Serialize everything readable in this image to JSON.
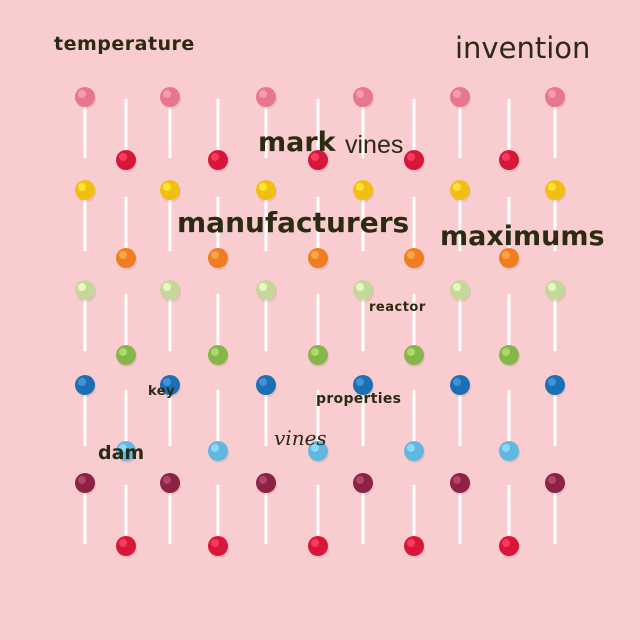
{
  "scene": {
    "background_color": "#f9cccf",
    "stick_color": "#ffffff",
    "candy_colors": {
      "pink": "#e8768f",
      "red": "#d8163a",
      "yellow": "#f3be14",
      "orange": "#ef7e22",
      "pale-green": "#c6d79a",
      "green": "#86b54a",
      "blue": "#1a70b2",
      "light-blue": "#62b7e1",
      "maroon": "#8e2244"
    }
  },
  "words": {
    "temperature": "temperature",
    "invention": "invention",
    "mark": "mark",
    "vines_1": "vines",
    "manufacturers": "manufacturers",
    "maximums": "maximums",
    "reactor": "reactor",
    "key": "key",
    "properties": "properties",
    "vines_2": "vines",
    "dam": "dam"
  }
}
